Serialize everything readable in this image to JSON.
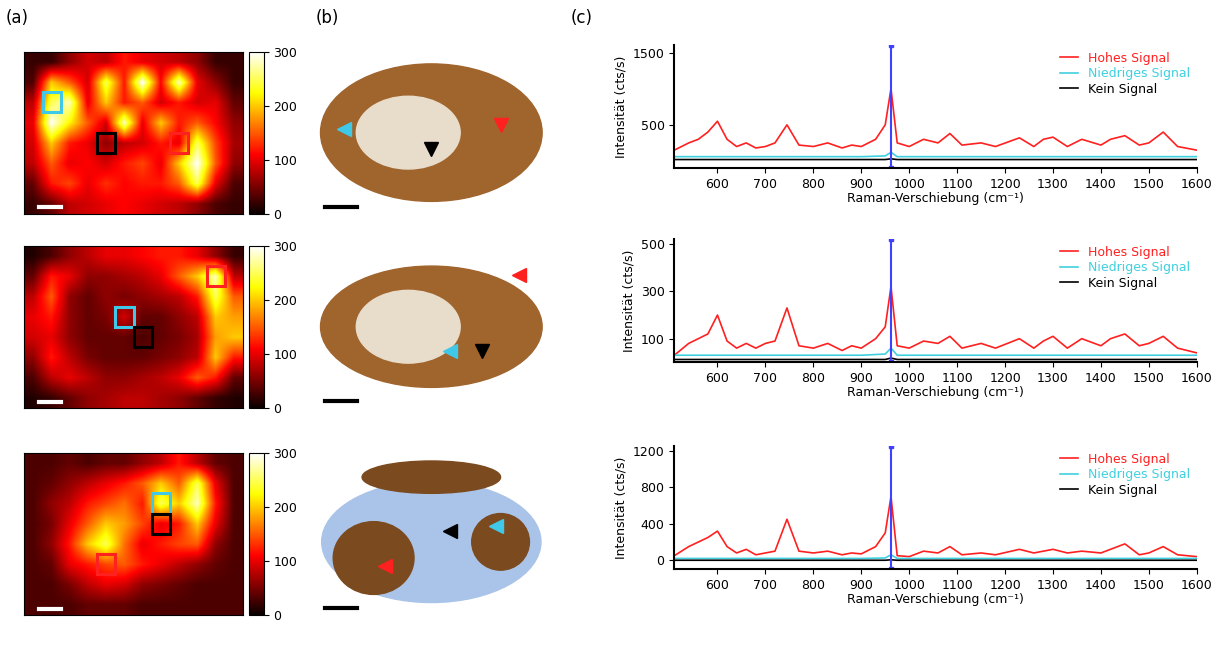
{
  "panel_labels": [
    "(a)",
    "(b)",
    "(c)"
  ],
  "chart_data": [
    {
      "type": "heatmap",
      "tick_labels": false,
      "colorbar_range": [
        0,
        300
      ],
      "colorbar_ticks": [
        0,
        100,
        200,
        300
      ],
      "cells": [
        [
          20,
          20,
          60,
          90,
          80,
          120,
          100,
          90,
          80,
          60,
          20,
          20
        ],
        [
          30,
          200,
          150,
          90,
          250,
          120,
          300,
          110,
          280,
          100,
          60,
          20
        ],
        [
          80,
          250,
          280,
          100,
          200,
          120,
          150,
          90,
          120,
          90,
          100,
          40
        ],
        [
          100,
          300,
          220,
          150,
          90,
          280,
          100,
          200,
          120,
          150,
          110,
          60
        ],
        [
          90,
          200,
          120,
          100,
          60,
          80,
          90,
          120,
          100,
          250,
          140,
          70
        ],
        [
          80,
          150,
          100,
          110,
          90,
          120,
          140,
          100,
          200,
          300,
          150,
          60
        ],
        [
          40,
          120,
          140,
          100,
          130,
          110,
          120,
          120,
          150,
          250,
          100,
          30
        ],
        [
          20,
          40,
          80,
          90,
          100,
          110,
          100,
          90,
          80,
          60,
          30,
          20
        ]
      ],
      "regions": [
        {
          "color": "#3fc8e8",
          "cell": [
            2,
            1
          ]
        },
        {
          "color": "black",
          "cell": [
            4,
            4
          ]
        },
        {
          "color": "#ff2020",
          "cell": [
            4,
            8
          ]
        }
      ]
    },
    {
      "type": "image",
      "colors": [
        "#3fc8e8",
        "black",
        "#ff2020"
      ]
    },
    {
      "type": "line",
      "xlabel": "Raman-Verschiebung (cm⁻¹)",
      "ylabel": "Intensität (cts/s)",
      "xlim": [
        510,
        1600
      ],
      "xticks": [
        600,
        700,
        800,
        900,
        1000,
        1100,
        1200,
        1300,
        1400,
        1500,
        1600
      ],
      "ylim": [
        -100,
        1600
      ],
      "yticks": [
        500,
        1500
      ],
      "legend": "upper right",
      "vertical_line": {
        "x": 962,
        "color": "#4040ff"
      },
      "series": [
        {
          "name": "Hohes Signal",
          "color": "#ff2020",
          "x": [
            510,
            540,
            560,
            580,
            600,
            620,
            640,
            660,
            680,
            700,
            720,
            745,
            770,
            800,
            830,
            860,
            880,
            900,
            930,
            950,
            962,
            975,
            1000,
            1030,
            1060,
            1085,
            1110,
            1150,
            1180,
            1230,
            1260,
            1280,
            1300,
            1330,
            1360,
            1400,
            1420,
            1450,
            1480,
            1500,
            1530,
            1560,
            1600
          ],
          "values": [
            150,
            250,
            300,
            400,
            550,
            300,
            200,
            250,
            180,
            200,
            250,
            500,
            220,
            200,
            250,
            180,
            220,
            200,
            300,
            500,
            1000,
            250,
            200,
            300,
            250,
            380,
            220,
            250,
            200,
            320,
            200,
            300,
            330,
            200,
            300,
            220,
            300,
            350,
            220,
            250,
            400,
            200,
            150
          ]
        },
        {
          "name": "Niedriges Signal",
          "color": "#3fd0e0",
          "x": [
            510,
            700,
            900,
            950,
            962,
            975,
            1200,
            1400,
            1600
          ],
          "values": [
            60,
            60,
            60,
            70,
            120,
            60,
            60,
            60,
            60
          ]
        },
        {
          "name": "Kein Signal",
          "color": "black",
          "x": [
            510,
            700,
            900,
            950,
            962,
            975,
            1200,
            1400,
            1600
          ],
          "values": [
            20,
            20,
            20,
            20,
            30,
            20,
            20,
            20,
            20
          ]
        }
      ]
    },
    {
      "type": "heatmap",
      "tick_labels": false,
      "colorbar_range": [
        0,
        300
      ],
      "colorbar_ticks": [
        0,
        100,
        200,
        300
      ],
      "cells": [
        [
          10,
          30,
          60,
          80,
          100,
          100,
          110,
          120,
          120,
          100,
          60,
          20
        ],
        [
          40,
          120,
          100,
          60,
          60,
          70,
          80,
          100,
          150,
          200,
          280,
          80
        ],
        [
          80,
          150,
          60,
          40,
          60,
          50,
          60,
          70,
          80,
          120,
          250,
          150
        ],
        [
          100,
          120,
          60,
          40,
          50,
          90,
          40,
          40,
          60,
          80,
          200,
          180
        ],
        [
          90,
          100,
          60,
          40,
          40,
          40,
          30,
          40,
          50,
          70,
          180,
          200
        ],
        [
          60,
          120,
          80,
          50,
          40,
          40,
          40,
          50,
          60,
          80,
          200,
          120
        ],
        [
          30,
          80,
          100,
          80,
          60,
          60,
          70,
          80,
          100,
          150,
          120,
          40
        ],
        [
          10,
          20,
          40,
          60,
          70,
          80,
          80,
          70,
          60,
          40,
          20,
          10
        ]
      ],
      "regions": [
        {
          "color": "#ff2020",
          "cell": [
            1,
            10
          ]
        },
        {
          "color": "#3fc8e8",
          "cell": [
            3,
            5
          ]
        },
        {
          "color": "black",
          "cell": [
            4,
            6
          ]
        }
      ]
    },
    {
      "type": "image",
      "colors": [
        "#ff2020",
        "#3fc8e8",
        "black"
      ]
    },
    {
      "type": "line",
      "xlabel": "Raman-Verschiebung (cm⁻¹)",
      "ylabel": "Intensität (cts/s)",
      "xlim": [
        510,
        1600
      ],
      "xticks": [
        600,
        700,
        800,
        900,
        1000,
        1100,
        1200,
        1300,
        1400,
        1500,
        1600
      ],
      "ylim": [
        0,
        520
      ],
      "yticks": [
        100,
        300,
        500
      ],
      "legend": "upper right",
      "vertical_line": {
        "x": 962,
        "color": "#4040ff"
      },
      "series": [
        {
          "name": "Hohes Signal",
          "color": "#ff2020",
          "x": [
            510,
            540,
            560,
            580,
            600,
            620,
            640,
            660,
            680,
            700,
            720,
            745,
            770,
            800,
            830,
            860,
            880,
            900,
            930,
            950,
            962,
            975,
            1000,
            1030,
            1060,
            1085,
            1110,
            1150,
            1180,
            1230,
            1260,
            1280,
            1300,
            1330,
            1360,
            1400,
            1420,
            1450,
            1480,
            1500,
            1530,
            1560,
            1600
          ],
          "values": [
            30,
            80,
            100,
            120,
            200,
            90,
            60,
            80,
            60,
            80,
            90,
            230,
            70,
            60,
            80,
            50,
            70,
            60,
            100,
            150,
            320,
            70,
            60,
            90,
            80,
            110,
            60,
            80,
            60,
            100,
            60,
            90,
            110,
            60,
            100,
            70,
            100,
            120,
            70,
            80,
            110,
            60,
            40
          ]
        },
        {
          "name": "Niedriges Signal",
          "color": "#3fd0e0",
          "x": [
            510,
            700,
            900,
            950,
            962,
            975,
            1200,
            1400,
            1600
          ],
          "values": [
            30,
            30,
            30,
            35,
            60,
            30,
            30,
            30,
            30
          ]
        },
        {
          "name": "Kein Signal",
          "color": "black",
          "x": [
            510,
            700,
            900,
            950,
            962,
            975,
            1200,
            1400,
            1600
          ],
          "values": [
            12,
            12,
            12,
            12,
            18,
            12,
            12,
            12,
            12
          ]
        }
      ]
    },
    {
      "type": "heatmap",
      "tick_labels": false,
      "colorbar_range": [
        0,
        300
      ],
      "colorbar_ticks": [
        0,
        100,
        200,
        300
      ],
      "cells": [
        [
          30,
          30,
          40,
          30,
          40,
          40,
          60,
          80,
          120,
          80,
          40,
          30
        ],
        [
          30,
          40,
          60,
          80,
          100,
          120,
          150,
          200,
          150,
          250,
          100,
          30
        ],
        [
          30,
          60,
          80,
          120,
          140,
          160,
          120,
          250,
          200,
          280,
          120,
          30
        ],
        [
          30,
          50,
          100,
          150,
          200,
          180,
          140,
          100,
          120,
          200,
          100,
          30
        ],
        [
          30,
          60,
          120,
          200,
          250,
          160,
          100,
          120,
          140,
          150,
          60,
          30
        ],
        [
          30,
          40,
          100,
          120,
          140,
          150,
          120,
          100,
          80,
          60,
          40,
          30
        ],
        [
          30,
          30,
          50,
          80,
          100,
          90,
          60,
          50,
          40,
          30,
          30,
          30
        ],
        [
          30,
          30,
          30,
          40,
          40,
          40,
          30,
          30,
          30,
          30,
          30,
          30
        ]
      ],
      "regions": [
        {
          "color": "#3fc8e8",
          "cell": [
            2,
            7
          ]
        },
        {
          "color": "black",
          "cell": [
            3,
            7
          ]
        },
        {
          "color": "#ff2020",
          "cell": [
            5,
            4
          ]
        }
      ]
    },
    {
      "type": "image",
      "colors": [
        "#ff2020",
        "black",
        "#3fc8e8"
      ]
    },
    {
      "type": "line",
      "xlabel": "Raman-Verschiebung (cm⁻¹)",
      "ylabel": "Intensität (cts/s)",
      "xlim": [
        510,
        1600
      ],
      "xticks": [
        600,
        700,
        800,
        900,
        1000,
        1100,
        1200,
        1300,
        1400,
        1500,
        1600
      ],
      "ylim": [
        -100,
        1250
      ],
      "yticks": [
        0,
        400,
        800,
        1200
      ],
      "legend": "upper right",
      "vertical_line": {
        "x": 962,
        "color": "#4040ff"
      },
      "series": [
        {
          "name": "Hohes Signal",
          "color": "#ff2020",
          "x": [
            510,
            540,
            560,
            580,
            600,
            620,
            640,
            660,
            680,
            700,
            720,
            745,
            770,
            800,
            830,
            860,
            880,
            900,
            930,
            950,
            962,
            975,
            1000,
            1030,
            1060,
            1085,
            1110,
            1150,
            1180,
            1230,
            1260,
            1280,
            1300,
            1330,
            1360,
            1400,
            1420,
            1450,
            1480,
            1500,
            1530,
            1560,
            1600
          ],
          "values": [
            50,
            150,
            200,
            250,
            320,
            150,
            80,
            120,
            60,
            80,
            100,
            450,
            100,
            80,
            100,
            60,
            80,
            70,
            150,
            300,
            700,
            50,
            40,
            100,
            80,
            150,
            60,
            80,
            60,
            120,
            80,
            100,
            120,
            80,
            100,
            80,
            120,
            180,
            60,
            80,
            150,
            60,
            40
          ]
        },
        {
          "name": "Niedriges Signal",
          "color": "#3fd0e0",
          "x": [
            510,
            700,
            900,
            950,
            962,
            975,
            1200,
            1400,
            1600
          ],
          "values": [
            20,
            20,
            20,
            25,
            60,
            20,
            20,
            20,
            20
          ]
        },
        {
          "name": "Kein Signal",
          "color": "black",
          "x": [
            510,
            700,
            900,
            950,
            962,
            975,
            1200,
            1400,
            1600
          ],
          "values": [
            0,
            0,
            0,
            0,
            5,
            0,
            0,
            0,
            0
          ]
        }
      ]
    }
  ]
}
